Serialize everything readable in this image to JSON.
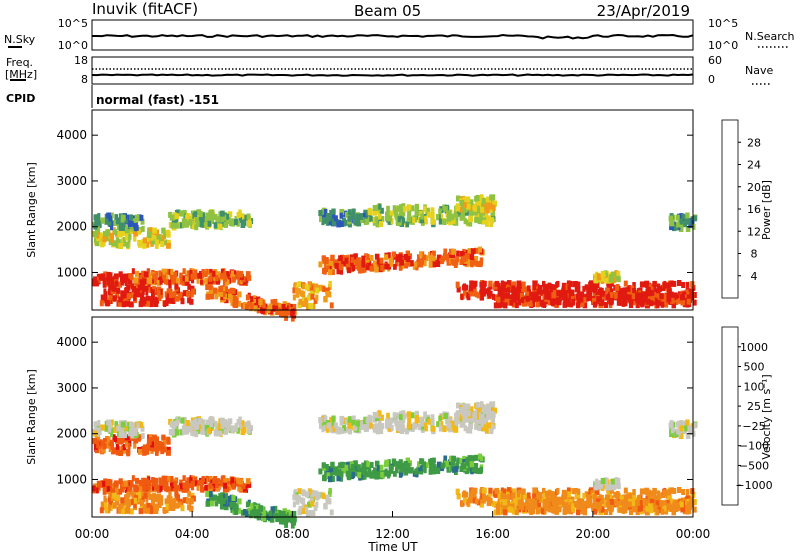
{
  "header": {
    "station": "Inuvik (fitACF)",
    "beam": "Beam 05",
    "date": "23/Apr/2019"
  },
  "top_panels": {
    "nsky_label": "N.Sky",
    "nsky_ticks": [
      "10^5",
      "10^0"
    ],
    "nsearch_label": "N.Search",
    "nsearch_ticks": [
      "10^5",
      "10^0"
    ],
    "freq_label": "Freq.",
    "freq_unit": "[MHz]",
    "freq_ticks": [
      "18",
      "8"
    ],
    "nave_label": "Nave",
    "nave_ticks": [
      "60",
      "0"
    ],
    "cpid_label": "CPID",
    "cpid_value": "normal (fast) -151"
  },
  "chart_data": [
    {
      "type": "heatmap",
      "name": "power",
      "ylabel": "Slant Range [km]",
      "ylim": [
        180,
        4550
      ],
      "yticks": [
        "1000",
        "2000",
        "3000",
        "4000"
      ],
      "colorbar": {
        "label": "Power [dB]",
        "ticks": [
          "4",
          "8",
          "12",
          "16",
          "20",
          "24",
          "28"
        ],
        "colors": [
          "#0a14e6",
          "#2b57b8",
          "#3f8f6a",
          "#8fc243",
          "#e6d21e",
          "#f09a1a",
          "#f06012",
          "#e01a10"
        ]
      }
    },
    {
      "type": "heatmap",
      "name": "velocity",
      "ylabel": "Slant Range [km]",
      "xlabel": "Time UT",
      "ylim": [
        180,
        4550
      ],
      "yticks": [
        "1000",
        "2000",
        "3000",
        "4000"
      ],
      "xticks": [
        "00:00",
        "04:00",
        "08:00",
        "12:00",
        "16:00",
        "20:00",
        "00:00"
      ],
      "colorbar": {
        "label": "Velocity [m s⁻¹]",
        "ticks": [
          "1000",
          "500",
          "100",
          "25",
          "−25",
          "−100",
          "−500",
          "−1000"
        ],
        "colors": [
          "#1f3fbf",
          "#2a6a8a",
          "#3e9a45",
          "#7ccd3c",
          "#c8c8c0",
          "#f2b818",
          "#f08a1a",
          "#f05a10",
          "#e01010"
        ]
      }
    }
  ]
}
